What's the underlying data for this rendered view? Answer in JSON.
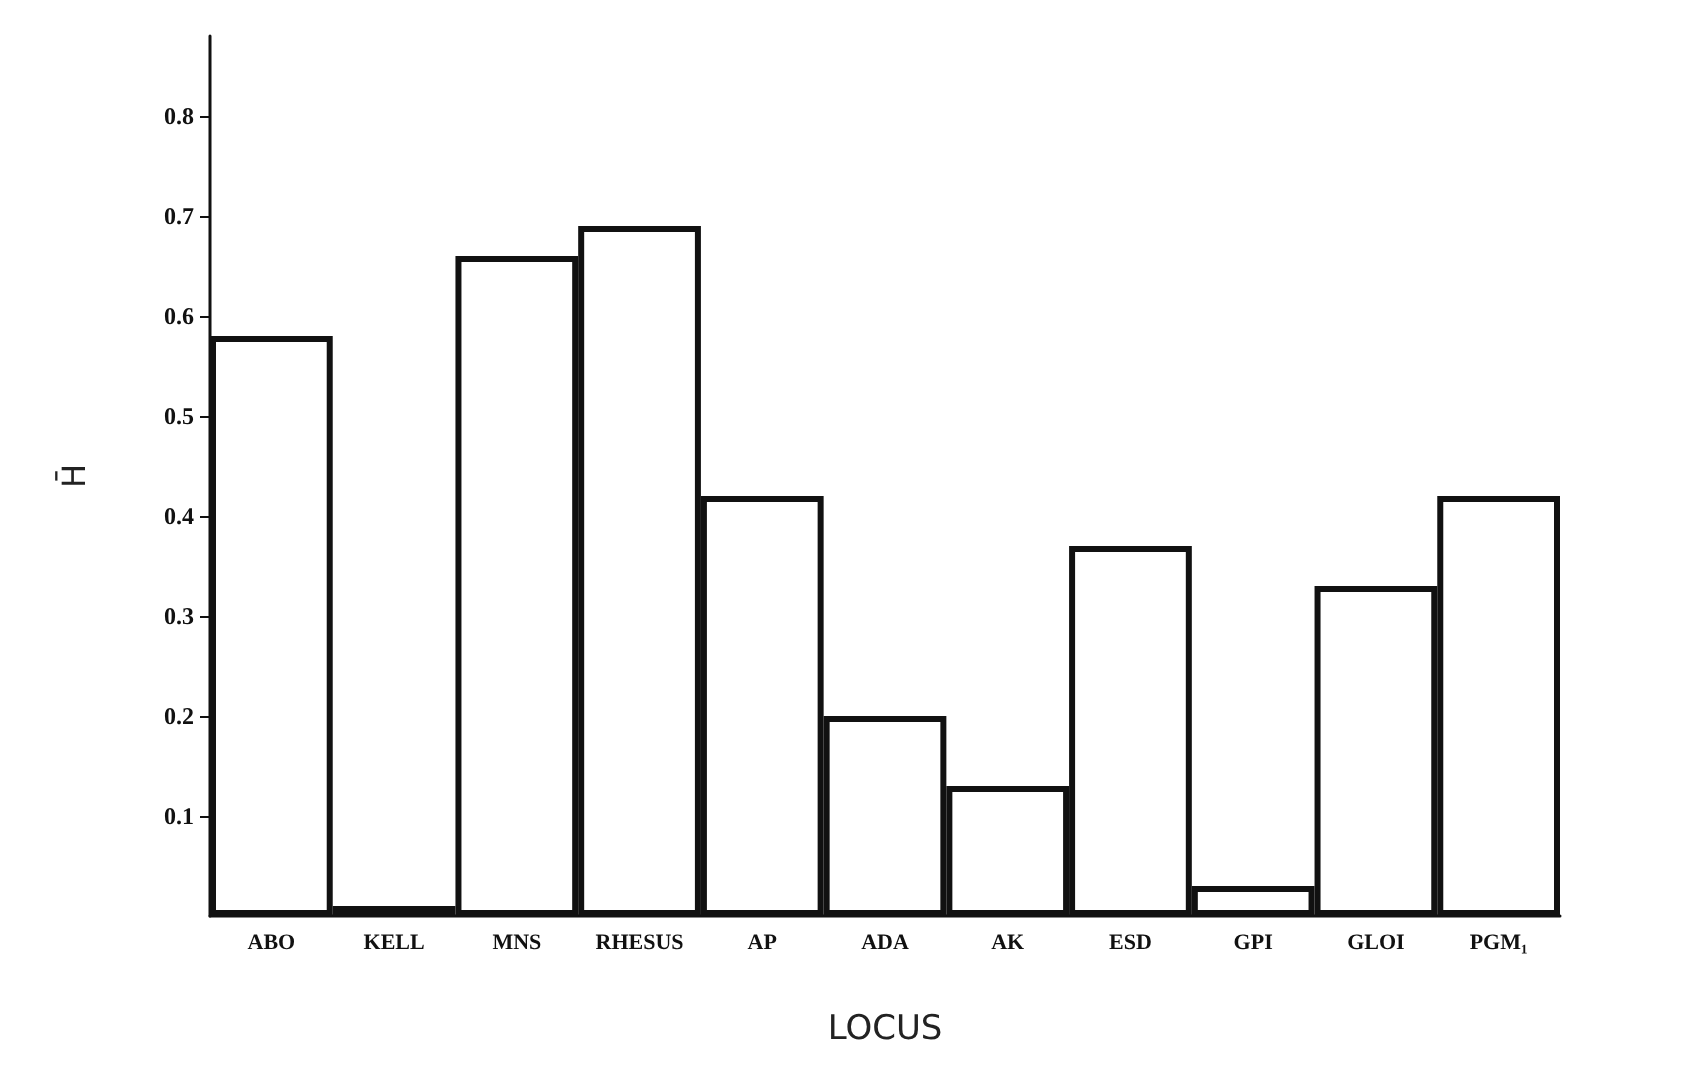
{
  "chart_data": {
    "type": "bar",
    "xlabel": "LOCUS",
    "ylabel": "H̄",
    "categories": [
      "ABO",
      "KELL",
      "MNS",
      "RHESUS",
      "AP",
      "ADA",
      "AK",
      "ESD",
      "GPI",
      "GLOI",
      "PGM₁"
    ],
    "values": [
      0.58,
      0.01,
      0.66,
      0.69,
      0.42,
      0.2,
      0.13,
      0.37,
      0.03,
      0.33,
      0.42
    ],
    "color": "#ffffff",
    "ylim": [
      0,
      0.88
    ],
    "yticks": [
      0.1,
      0.2,
      0.3,
      0.4,
      0.5,
      0.6,
      0.7,
      0.8
    ],
    "grid": false
  }
}
